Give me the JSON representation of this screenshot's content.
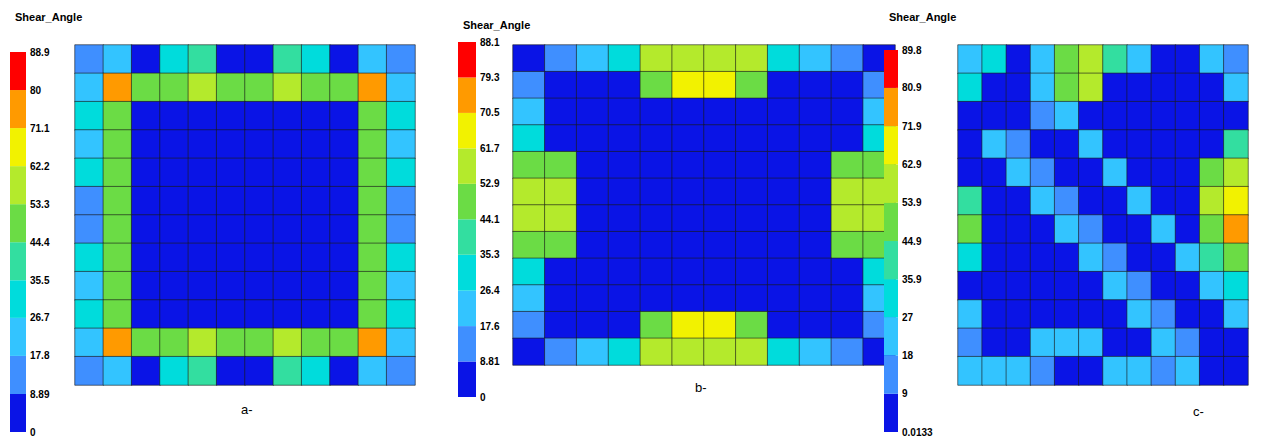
{
  "chart_data": [
    {
      "type": "heatmap",
      "title": "Shear_Angle",
      "label": "a-",
      "tick_labels": false,
      "colorbar_lim": [
        0,
        88.9
      ],
      "colorbar_ticks": [
        0,
        8.89,
        17.8,
        26.7,
        35.5,
        44.4,
        53.3,
        62.2,
        71.1,
        80,
        88.9
      ],
      "colors": [
        "#0a14e6",
        "#3f8fff",
        "#33c4ff",
        "#00dcdc",
        "#33dea0",
        "#6bdc45",
        "#b4ea2c",
        "#f2f200",
        "#ff9a00",
        "#ff0000"
      ],
      "cells": [
        [
          12,
          18,
          8,
          28,
          40,
          5,
          5,
          40,
          28,
          8,
          18,
          12
        ],
        [
          20,
          72,
          48,
          45,
          60,
          50,
          50,
          60,
          45,
          48,
          72,
          20
        ],
        [
          30,
          48,
          3,
          3,
          3,
          3,
          3,
          3,
          3,
          3,
          48,
          30
        ],
        [
          18,
          45,
          3,
          2,
          2,
          2,
          2,
          2,
          2,
          3,
          45,
          18
        ],
        [
          35,
          50,
          3,
          2,
          1,
          1,
          1,
          1,
          2,
          3,
          50,
          35
        ],
        [
          15,
          45,
          3,
          2,
          1,
          0,
          0,
          1,
          2,
          3,
          45,
          15
        ],
        [
          15,
          45,
          3,
          2,
          1,
          0,
          0,
          1,
          2,
          3,
          45,
          15
        ],
        [
          35,
          50,
          3,
          2,
          1,
          1,
          1,
          1,
          2,
          3,
          50,
          35
        ],
        [
          18,
          45,
          3,
          2,
          2,
          2,
          2,
          2,
          2,
          3,
          45,
          18
        ],
        [
          30,
          48,
          3,
          3,
          3,
          3,
          3,
          3,
          3,
          3,
          48,
          30
        ],
        [
          20,
          72,
          48,
          45,
          60,
          50,
          50,
          60,
          45,
          48,
          72,
          20
        ],
        [
          12,
          18,
          8,
          28,
          40,
          5,
          5,
          40,
          28,
          8,
          18,
          12
        ]
      ]
    },
    {
      "type": "heatmap",
      "title": "Shear_Angle",
      "label": "b-",
      "tick_labels": false,
      "colorbar_lim": [
        0,
        88.1
      ],
      "colorbar_ticks": [
        0,
        8.81,
        17.6,
        26.4,
        35.3,
        44.1,
        52.9,
        61.7,
        70.5,
        79.3,
        88.1
      ],
      "colors": [
        "#0a14e6",
        "#3f8fff",
        "#33c4ff",
        "#00dcdc",
        "#33dea0",
        "#6bdc45",
        "#b4ea2c",
        "#f2f200",
        "#ff9a00",
        "#ff0000"
      ],
      "cells": [
        [
          3,
          10,
          20,
          30,
          55,
          60,
          60,
          55,
          30,
          20,
          10,
          3
        ],
        [
          10,
          3,
          3,
          3,
          48,
          62,
          62,
          48,
          3,
          3,
          3,
          10
        ],
        [
          20,
          3,
          2,
          2,
          2,
          2,
          2,
          2,
          2,
          2,
          3,
          20
        ],
        [
          30,
          3,
          2,
          1,
          1,
          1,
          1,
          1,
          1,
          2,
          3,
          30
        ],
        [
          50,
          45,
          2,
          1,
          0,
          0,
          0,
          0,
          1,
          2,
          45,
          50
        ],
        [
          58,
          60,
          2,
          1,
          0,
          0,
          0,
          0,
          1,
          2,
          60,
          58
        ],
        [
          58,
          60,
          2,
          1,
          0,
          0,
          0,
          0,
          1,
          2,
          60,
          58
        ],
        [
          50,
          45,
          2,
          1,
          0,
          0,
          0,
          0,
          1,
          2,
          45,
          50
        ],
        [
          30,
          3,
          2,
          1,
          1,
          1,
          1,
          1,
          1,
          2,
          3,
          30
        ],
        [
          20,
          3,
          2,
          2,
          2,
          2,
          2,
          2,
          2,
          2,
          3,
          20
        ],
        [
          10,
          3,
          3,
          3,
          48,
          62,
          62,
          48,
          3,
          3,
          3,
          10
        ],
        [
          3,
          10,
          20,
          30,
          55,
          60,
          60,
          55,
          30,
          20,
          10,
          3
        ]
      ]
    },
    {
      "type": "heatmap",
      "title": "Shear_Angle",
      "label": "c-",
      "tick_labels": false,
      "colorbar_lim": [
        0.0133,
        89.8
      ],
      "colorbar_ticks": [
        0.0133,
        9,
        18,
        27,
        35.9,
        44.9,
        53.9,
        62.9,
        71.9,
        80.9,
        89.8
      ],
      "colors": [
        "#0a14e6",
        "#3f8fff",
        "#33c4ff",
        "#00dcdc",
        "#33dea0",
        "#6bdc45",
        "#b4ea2c",
        "#f2f200",
        "#ff9a00",
        "#ff0000"
      ],
      "cells": [
        [
          20,
          30,
          3,
          25,
          50,
          60,
          40,
          20,
          3,
          3,
          20,
          15
        ],
        [
          30,
          3,
          3,
          25,
          45,
          55,
          3,
          3,
          3,
          3,
          3,
          20
        ],
        [
          3,
          3,
          3,
          15,
          25,
          3,
          3,
          3,
          3,
          3,
          3,
          3
        ],
        [
          3,
          20,
          15,
          3,
          3,
          20,
          3,
          3,
          3,
          3,
          3,
          40
        ],
        [
          3,
          3,
          20,
          15,
          3,
          3,
          20,
          3,
          3,
          3,
          50,
          60
        ],
        [
          40,
          3,
          3,
          20,
          15,
          3,
          3,
          20,
          3,
          3,
          55,
          65
        ],
        [
          45,
          3,
          3,
          3,
          20,
          15,
          3,
          3,
          20,
          3,
          45,
          80
        ],
        [
          30,
          3,
          3,
          3,
          3,
          20,
          15,
          3,
          3,
          20,
          40,
          50
        ],
        [
          3,
          3,
          3,
          3,
          3,
          3,
          20,
          15,
          3,
          3,
          20,
          30
        ],
        [
          20,
          3,
          3,
          3,
          3,
          3,
          3,
          20,
          15,
          3,
          3,
          20
        ],
        [
          15,
          3,
          3,
          20,
          20,
          20,
          3,
          3,
          20,
          15,
          3,
          3
        ],
        [
          20,
          25,
          20,
          15,
          3,
          3,
          20,
          25,
          15,
          20,
          3,
          3
        ]
      ]
    }
  ]
}
